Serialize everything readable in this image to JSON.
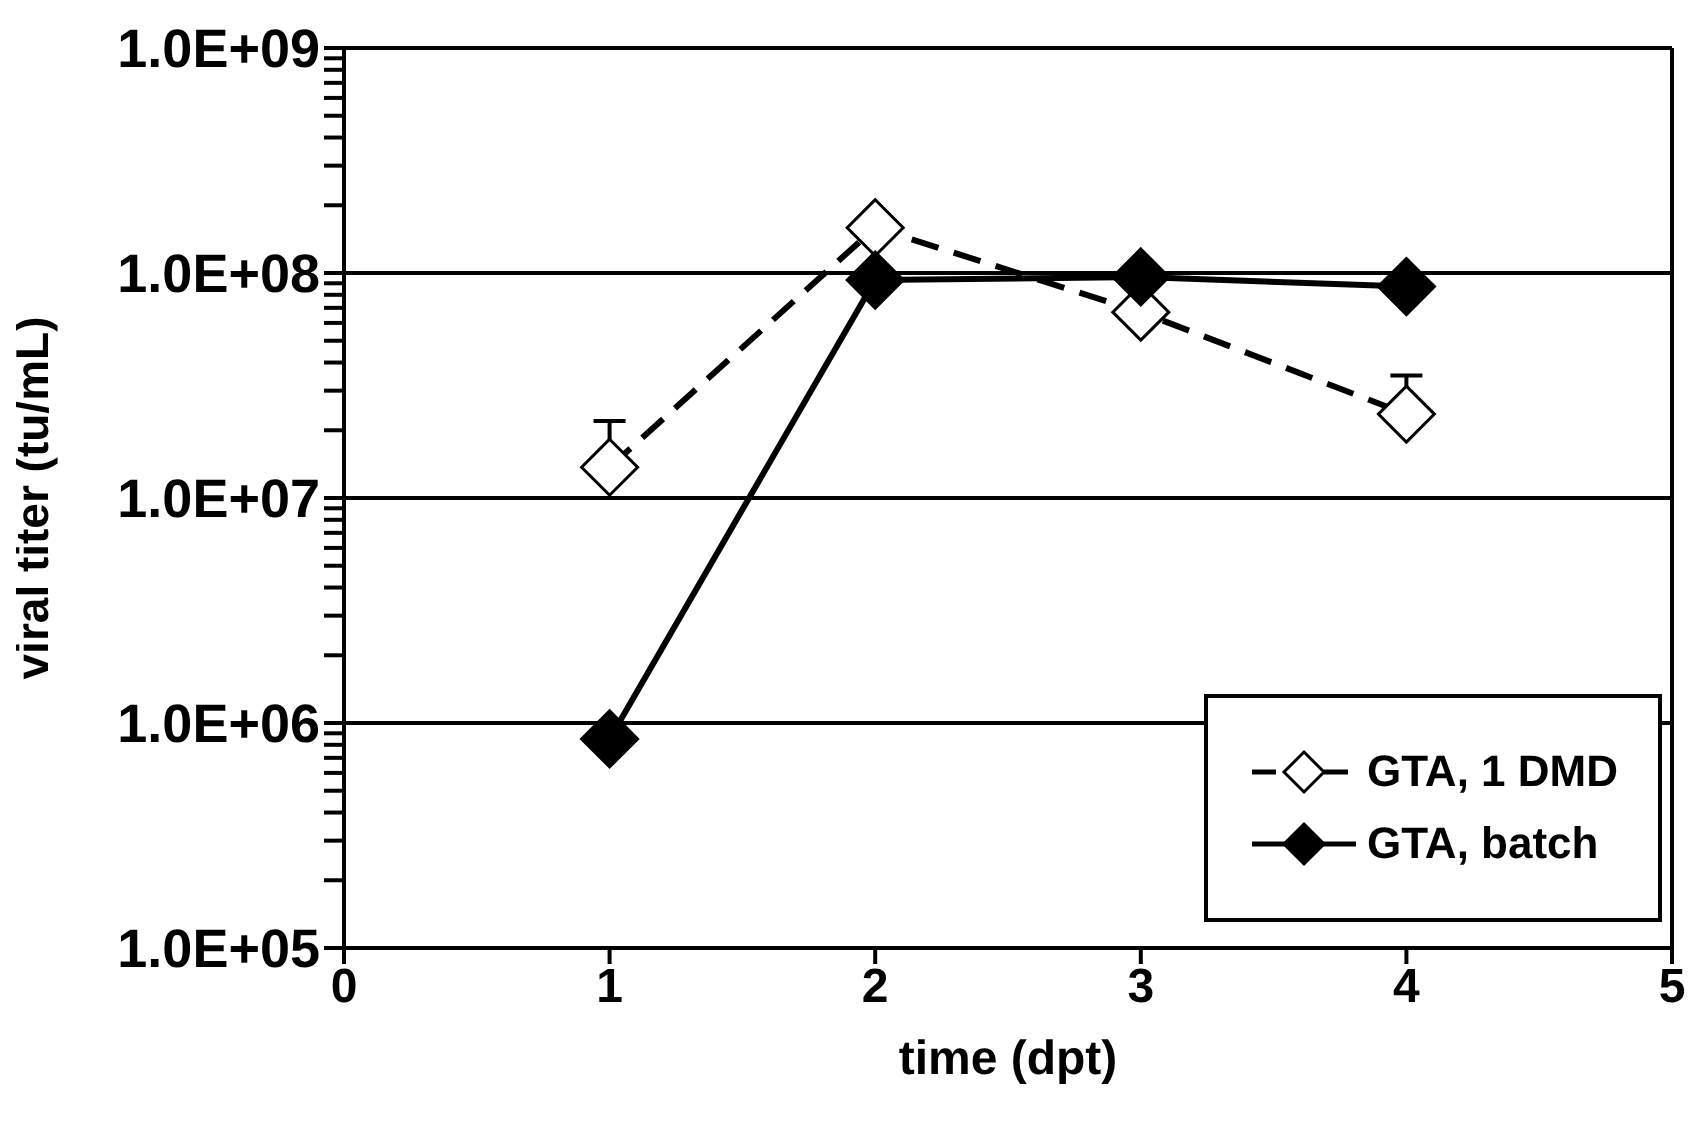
{
  "chart_data": {
    "type": "line",
    "xlabel": "time (dpt)",
    "ylabel": "viral titer (tu/mL)",
    "x": [
      1,
      2,
      3,
      4
    ],
    "series": [
      {
        "name": "GTA, 1 DMD",
        "color": "#000000",
        "line_style": "dashed",
        "values": [
          13700000,
          159000000,
          67000000,
          23600000
        ],
        "errors": [
          [
            13700000,
            22000000
          ],
          null,
          null,
          [
            23600000,
            35000000
          ]
        ]
      },
      {
        "name": "GTA, batch",
        "color": "#000000",
        "line_style": "solid",
        "values": [
          850000,
          93000000,
          96000000,
          87000000
        ]
      }
    ],
    "xlim": [
      0,
      5
    ],
    "xticks": [
      0,
      1,
      2,
      3,
      4,
      5
    ],
    "ylim": [
      100000,
      1000000000
    ],
    "yticks": [
      {
        "value": 100000,
        "label": "1.0E+05"
      },
      {
        "value": 200000,
        "label": null
      },
      {
        "value": 300000,
        "label": null
      },
      {
        "value": 400000,
        "label": null
      },
      {
        "value": 500000,
        "label": null
      },
      {
        "value": 600000,
        "label": null
      },
      {
        "value": 700000,
        "label": null
      },
      {
        "value": 800000,
        "label": null
      },
      {
        "value": 900000,
        "label": null
      },
      {
        "value": 1000000,
        "label": "1.0E+06"
      },
      {
        "value": 2000000,
        "label": null
      },
      {
        "value": 3000000,
        "label": null
      },
      {
        "value": 4000000,
        "label": null
      },
      {
        "value": 5000000,
        "label": null
      },
      {
        "value": 6000000,
        "label": null
      },
      {
        "value": 7000000,
        "label": null
      },
      {
        "value": 8000000,
        "label": null
      },
      {
        "value": 9000000,
        "label": null
      },
      {
        "value": 10000000,
        "label": "1.0E+07"
      },
      {
        "value": 20000000,
        "label": null
      },
      {
        "value": 30000000,
        "label": null
      },
      {
        "value": 40000000,
        "label": null
      },
      {
        "value": 50000000,
        "label": null
      },
      {
        "value": 60000000,
        "label": null
      },
      {
        "value": 70000000,
        "label": null
      },
      {
        "value": 80000000,
        "label": null
      },
      {
        "value": 90000000,
        "label": null
      },
      {
        "value": 100000000,
        "label": "1.0E+08"
      },
      {
        "value": 200000000,
        "label": null
      },
      {
        "value": 300000000,
        "label": null
      },
      {
        "value": 400000000,
        "label": null
      },
      {
        "value": 500000000,
        "label": null
      },
      {
        "value": 600000000,
        "label": null
      },
      {
        "value": 700000000,
        "label": null
      },
      {
        "value": 800000000,
        "label": null
      },
      {
        "value": 900000000,
        "label": null
      },
      {
        "value": 1000000000,
        "label": "1.0E+09"
      }
    ],
    "log": "y",
    "grid": "y",
    "legend": "bottom right",
    "marker": "diamond"
  }
}
